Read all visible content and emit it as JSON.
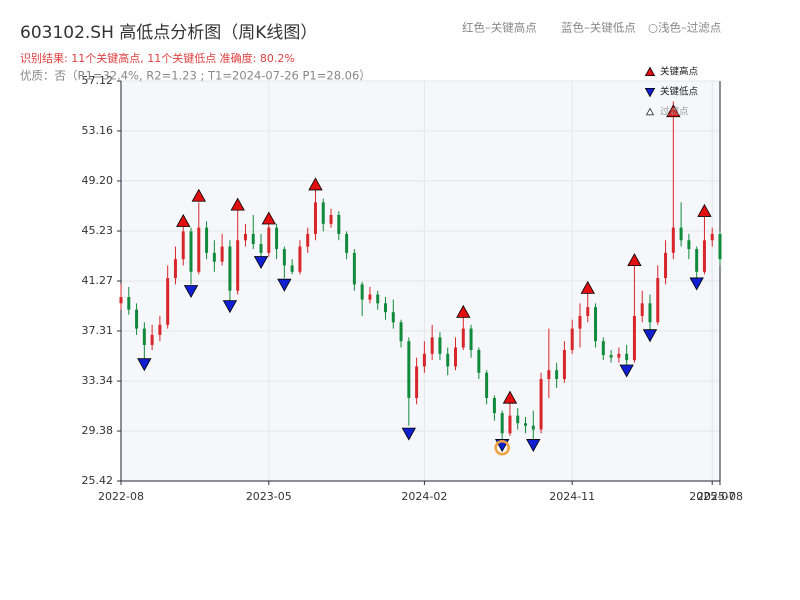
{
  "chart_data": {
    "type": "candlestick",
    "title": "603102.SH 高低点分析图（周K线图）",
    "subtitle": "识别结果: 11个关键高点, 11个关键低点   准确度: 80.2%",
    "note": "优质：否（R1=32.4%, R2=1.23 ; T1=2024-07-26 P1=28.06）",
    "annotations": [
      "红色–关键高点",
      "蓝色–关键低点",
      "○浅色–过滤点"
    ],
    "categories": [
      "2022-08",
      null,
      null,
      null,
      null,
      null,
      null,
      null,
      null,
      null,
      null,
      null,
      null,
      null,
      null,
      null,
      null,
      null,
      null,
      "2023-05",
      null,
      null,
      null,
      null,
      null,
      null,
      null,
      null,
      null,
      null,
      null,
      null,
      null,
      null,
      null,
      null,
      null,
      null,
      null,
      "2024-02",
      null,
      null,
      null,
      null,
      null,
      null,
      null,
      null,
      null,
      null,
      null,
      null,
      null,
      null,
      null,
      null,
      null,
      null,
      "2024-11",
      null,
      null,
      null,
      null,
      null,
      null,
      null,
      null,
      null,
      null,
      null,
      null,
      null,
      null,
      null,
      null,
      null,
      "2025-07",
      "2025-08"
    ],
    "open": [
      39.5,
      40.0,
      39.0,
      37.5,
      36.2,
      37.0,
      37.8,
      41.5,
      43.0,
      45.2,
      42.0,
      45.5,
      43.5,
      42.8,
      44.0,
      40.5,
      44.5,
      45.0,
      44.2,
      43.5,
      45.5,
      43.8,
      42.5,
      42.0,
      44.0,
      45.0,
      47.5,
      45.8,
      46.5,
      45.0,
      43.5,
      41.0,
      39.8,
      40.2,
      39.5,
      38.8,
      38.0,
      36.5,
      32.0,
      34.5,
      35.5,
      36.8,
      35.5,
      34.5,
      36.0,
      37.5,
      35.8,
      34.0,
      32.0,
      30.8,
      29.2,
      30.6,
      30.0,
      29.8,
      29.5,
      33.5,
      34.2,
      33.5,
      35.8,
      37.5,
      38.5,
      39.2,
      36.5,
      35.4,
      35.2,
      35.5,
      35.0,
      38.5,
      39.5,
      38.0,
      41.5,
      43.5,
      45.5,
      44.5,
      43.8,
      42.0,
      44.5,
      45.0
    ],
    "close": [
      40.0,
      39.0,
      37.5,
      36.2,
      37.0,
      37.8,
      41.5,
      43.0,
      45.2,
      42.0,
      45.5,
      43.5,
      42.8,
      44.0,
      40.5,
      44.5,
      45.0,
      44.2,
      43.5,
      45.5,
      43.8,
      42.5,
      42.0,
      44.0,
      45.0,
      47.5,
      45.8,
      46.5,
      45.0,
      43.5,
      41.0,
      39.8,
      40.2,
      39.5,
      38.8,
      38.0,
      36.5,
      32.0,
      34.5,
      35.5,
      36.8,
      35.5,
      34.5,
      36.0,
      37.5,
      35.8,
      34.0,
      32.0,
      30.8,
      29.2,
      30.6,
      30.0,
      29.8,
      29.5,
      33.5,
      34.2,
      33.5,
      35.8,
      37.5,
      38.5,
      39.2,
      36.5,
      35.4,
      35.2,
      35.5,
      35.0,
      38.5,
      39.5,
      38.0,
      41.5,
      43.5,
      45.5,
      44.5,
      43.8,
      42.0,
      44.5,
      45.0,
      43.0
    ],
    "high": [
      41.0,
      40.8,
      39.5,
      38.0,
      37.8,
      38.5,
      42.5,
      44.0,
      45.8,
      45.5,
      47.5,
      46.0,
      44.5,
      45.0,
      44.5,
      47.0,
      45.8,
      46.5,
      45.0,
      46.0,
      45.8,
      44.0,
      43.0,
      44.5,
      45.5,
      48.5,
      47.8,
      47.0,
      46.8,
      45.2,
      43.8,
      41.2,
      40.8,
      40.5,
      40.0,
      39.8,
      38.2,
      36.8,
      35.2,
      36.5,
      37.8,
      37.2,
      36.0,
      36.8,
      38.5,
      37.8,
      36.0,
      34.2,
      32.2,
      31.0,
      31.8,
      31.2,
      30.5,
      31.0,
      34.0,
      37.5,
      34.8,
      36.5,
      38.2,
      39.5,
      40.4,
      39.5,
      36.8,
      35.8,
      36.0,
      36.2,
      42.6,
      40.5,
      40.2,
      42.5,
      44.5,
      55.5,
      47.5,
      45.0,
      44.0,
      46.4,
      45.5,
      45.2
    ],
    "low": [
      39.0,
      38.6,
      37.0,
      35.0,
      35.8,
      36.5,
      37.5,
      41.0,
      42.5,
      41.0,
      41.8,
      43.0,
      42.0,
      42.5,
      39.6,
      40.2,
      44.0,
      43.8,
      43.0,
      43.2,
      43.0,
      41.5,
      41.8,
      41.8,
      43.5,
      44.5,
      45.2,
      45.5,
      44.5,
      43.0,
      40.5,
      38.5,
      39.5,
      39.0,
      38.2,
      37.5,
      36.0,
      29.8,
      31.5,
      34.0,
      35.0,
      35.0,
      33.8,
      34.2,
      35.8,
      35.2,
      33.5,
      31.5,
      30.2,
      28.3,
      29.0,
      29.5,
      29.2,
      28.6,
      29.2,
      32.0,
      32.8,
      33.2,
      35.5,
      36.0,
      38.0,
      36.0,
      35.0,
      34.8,
      34.8,
      34.5,
      34.8,
      38.0,
      37.2,
      37.8,
      41.0,
      43.0,
      44.0,
      43.0,
      41.4,
      41.8,
      44.0,
      42.5
    ],
    "up_color": "#d9262b",
    "down_color": "#128a3c",
    "series": [
      {
        "name": "关键高点",
        "color": "#e01010",
        "marker": "triangle-up",
        "values": [
          null,
          null,
          null,
          null,
          null,
          null,
          null,
          null,
          46.0,
          null,
          48.0,
          null,
          null,
          null,
          null,
          47.3,
          null,
          null,
          null,
          46.2,
          null,
          null,
          null,
          null,
          null,
          48.9,
          null,
          null,
          null,
          null,
          null,
          null,
          null,
          null,
          null,
          null,
          null,
          null,
          null,
          null,
          null,
          null,
          null,
          null,
          38.8,
          null,
          null,
          null,
          null,
          null,
          32.0,
          null,
          null,
          null,
          null,
          null,
          null,
          null,
          null,
          null,
          40.7,
          null,
          null,
          null,
          null,
          null,
          42.9,
          null,
          null,
          null,
          null,
          54.7,
          null,
          null,
          null,
          46.8,
          null,
          null
        ]
      },
      {
        "name": "关键低点",
        "color": "#1020d0",
        "marker": "triangle-down",
        "values": [
          null,
          null,
          null,
          34.7,
          null,
          null,
          null,
          null,
          null,
          40.5,
          null,
          null,
          null,
          null,
          39.3,
          null,
          null,
          null,
          42.8,
          null,
          null,
          41.0,
          null,
          null,
          null,
          null,
          null,
          null,
          null,
          null,
          null,
          null,
          null,
          null,
          null,
          null,
          null,
          29.2,
          null,
          null,
          null,
          null,
          null,
          null,
          null,
          null,
          null,
          null,
          null,
          28.3,
          null,
          null,
          null,
          28.3,
          null,
          null,
          null,
          null,
          null,
          null,
          null,
          null,
          null,
          null,
          null,
          34.2,
          null,
          null,
          37.0,
          null,
          null,
          null,
          null,
          null,
          41.1,
          null,
          null,
          null
        ]
      },
      {
        "name": "过滤点",
        "color": "#f0a040",
        "marker": "circle",
        "values": [
          null,
          null,
          null,
          null,
          null,
          null,
          null,
          null,
          null,
          null,
          null,
          null,
          null,
          null,
          null,
          null,
          null,
          null,
          null,
          null,
          null,
          null,
          null,
          null,
          null,
          null,
          null,
          null,
          null,
          null,
          null,
          null,
          null,
          null,
          null,
          null,
          null,
          null,
          null,
          null,
          null,
          null,
          null,
          null,
          null,
          null,
          null,
          null,
          null,
          28.06,
          null,
          null,
          null,
          null,
          null,
          null,
          null,
          null,
          null,
          null,
          null,
          null,
          null,
          null,
          null,
          null,
          null,
          null,
          null,
          null,
          null,
          null,
          null,
          null,
          null,
          null,
          null,
          null
        ]
      }
    ],
    "ylim": [
      25.42,
      57.12
    ],
    "yticks": [
      25.42,
      29.38,
      33.34,
      37.31,
      41.27,
      45.23,
      {
        "value": 49.2,
        "label": "49.20"
      },
      53.16,
      57.12
    ],
    "grid": true,
    "legend": "upper right"
  }
}
